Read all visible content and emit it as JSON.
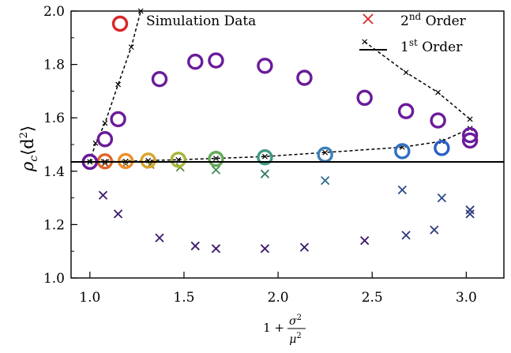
{
  "chart_data": {
    "type": "scatter",
    "title": "",
    "xlabel_prefix": "1 + ",
    "xlabel_num": "σ",
    "xlabel_den": "μ",
    "xlabel_exp": "2",
    "ylabel_main": "ρ",
    "ylabel_sub": "c",
    "ylabel_rest": "⟨d",
    "ylabel_sup": "2",
    "ylabel_close": "⟩",
    "xlim": [
      0.9,
      3.2
    ],
    "ylim": [
      1.0,
      2.0
    ],
    "xticks": [
      1.0,
      1.5,
      2.0,
      2.5,
      3.0
    ],
    "yticks": [
      1.0,
      1.2,
      1.4,
      1.6,
      1.8,
      2.0
    ],
    "xtick_labels": [
      "1.0",
      "1.5",
      "2.0",
      "2.5",
      "3.0"
    ],
    "ytick_labels": [
      "1.0",
      "1.2",
      "1.4",
      "1.6",
      "1.8",
      "2.0"
    ],
    "legend": {
      "simulation_label": "Simulation Data",
      "second_order_base": "2",
      "second_order_sup": "nd",
      "second_order_rest": " Order",
      "first_order_base": "1",
      "first_order_sup": "st",
      "first_order_rest": " Order",
      "simulation_color": "#d62728",
      "second_order_color": "#d62728"
    },
    "first_order_value": 1.435,
    "simulation_upper": [
      {
        "x": 1.0,
        "y": 1.435,
        "color": "#6a1b9a"
      },
      {
        "x": 1.08,
        "y": 1.52,
        "color": "#6a1b9a"
      },
      {
        "x": 1.15,
        "y": 1.595,
        "color": "#6a1b9a"
      },
      {
        "x": 1.37,
        "y": 1.745,
        "color": "#6a1b9a"
      },
      {
        "x": 1.56,
        "y": 1.81,
        "color": "#6a1b9a"
      },
      {
        "x": 1.67,
        "y": 1.815,
        "color": "#6a1b9a"
      },
      {
        "x": 1.93,
        "y": 1.795,
        "color": "#6a1b9a"
      },
      {
        "x": 2.14,
        "y": 1.75,
        "color": "#6a1b9a"
      },
      {
        "x": 2.46,
        "y": 1.675,
        "color": "#6a1b9a"
      },
      {
        "x": 2.68,
        "y": 1.625,
        "color": "#6a1b9a"
      },
      {
        "x": 2.85,
        "y": 1.59,
        "color": "#6a1b9a"
      },
      {
        "x": 3.02,
        "y": 1.535,
        "color": "#6a1b9a"
      },
      {
        "x": 3.02,
        "y": 1.515,
        "color": "#6a1b9a"
      }
    ],
    "simulation_lower": [
      {
        "x": 1.0,
        "y": 1.435,
        "color": "#6a1b9a"
      },
      {
        "x": 1.08,
        "y": 1.437,
        "color": "#e0652a"
      },
      {
        "x": 1.19,
        "y": 1.438,
        "color": "#f08c28"
      },
      {
        "x": 1.31,
        "y": 1.44,
        "color": "#d8a52b"
      },
      {
        "x": 1.47,
        "y": 1.443,
        "color": "#a9b53a"
      },
      {
        "x": 1.67,
        "y": 1.446,
        "color": "#66a95a"
      },
      {
        "x": 1.93,
        "y": 1.452,
        "color": "#3f9a83"
      },
      {
        "x": 2.25,
        "y": 1.462,
        "color": "#3b7fb8"
      },
      {
        "x": 2.66,
        "y": 1.475,
        "color": "#2f6fc7"
      },
      {
        "x": 2.87,
        "y": 1.487,
        "color": "#2a5fc5"
      }
    ],
    "second_order_cross": [
      {
        "x": 1.07,
        "y": 1.31,
        "color": "#3b1a6b"
      },
      {
        "x": 1.15,
        "y": 1.24,
        "color": "#3b1a6b"
      },
      {
        "x": 1.37,
        "y": 1.15,
        "color": "#3b1a6b"
      },
      {
        "x": 1.56,
        "y": 1.12,
        "color": "#3b1a6b"
      },
      {
        "x": 1.67,
        "y": 1.11,
        "color": "#3b1a6b"
      },
      {
        "x": 1.93,
        "y": 1.11,
        "color": "#3b1a6b"
      },
      {
        "x": 2.14,
        "y": 1.115,
        "color": "#3b1a6b"
      },
      {
        "x": 2.46,
        "y": 1.14,
        "color": "#3b1a6b"
      },
      {
        "x": 2.68,
        "y": 1.16,
        "color": "#2c3a7a"
      },
      {
        "x": 2.83,
        "y": 1.18,
        "color": "#2c3a7a"
      },
      {
        "x": 3.02,
        "y": 1.24,
        "color": "#2c3a7a"
      },
      {
        "x": 3.02,
        "y": 1.255,
        "color": "#2c3a7a"
      },
      {
        "x": 2.66,
        "y": 1.33,
        "color": "#2c4a8a"
      },
      {
        "x": 2.87,
        "y": 1.3,
        "color": "#2c4a8a"
      },
      {
        "x": 2.25,
        "y": 1.365,
        "color": "#2f6a8a"
      },
      {
        "x": 1.93,
        "y": 1.39,
        "color": "#3a7a6a"
      },
      {
        "x": 1.67,
        "y": 1.405,
        "color": "#3f8a5a"
      },
      {
        "x": 1.48,
        "y": 1.415,
        "color": "#5a8a3a"
      },
      {
        "x": 1.32,
        "y": 1.425,
        "color": "#7a7a2a"
      },
      {
        "x": 1.19,
        "y": 1.428,
        "color": "#8a6a2a"
      },
      {
        "x": 1.08,
        "y": 1.43,
        "color": "#8a4a2a"
      }
    ],
    "dashed_left": [
      {
        "x": 1.0,
        "y": 1.435
      },
      {
        "x": 1.03,
        "y": 1.505
      },
      {
        "x": 1.08,
        "y": 1.58
      },
      {
        "x": 1.15,
        "y": 1.725
      },
      {
        "x": 1.22,
        "y": 1.865
      },
      {
        "x": 1.27,
        "y": 2.0
      }
    ],
    "dashed_right": [
      {
        "x": 2.46,
        "y": 1.885
      },
      {
        "x": 2.68,
        "y": 1.77
      },
      {
        "x": 2.85,
        "y": 1.695
      },
      {
        "x": 3.02,
        "y": 1.595
      }
    ],
    "dashed_lower": [
      {
        "x": 1.0,
        "y": 1.435
      },
      {
        "x": 1.08,
        "y": 1.436
      },
      {
        "x": 1.19,
        "y": 1.437
      },
      {
        "x": 1.31,
        "y": 1.44
      },
      {
        "x": 1.47,
        "y": 1.443
      },
      {
        "x": 1.67,
        "y": 1.448
      },
      {
        "x": 1.93,
        "y": 1.455
      },
      {
        "x": 2.25,
        "y": 1.47
      },
      {
        "x": 2.66,
        "y": 1.49
      },
      {
        "x": 2.87,
        "y": 1.512
      },
      {
        "x": 3.02,
        "y": 1.56
      }
    ]
  }
}
